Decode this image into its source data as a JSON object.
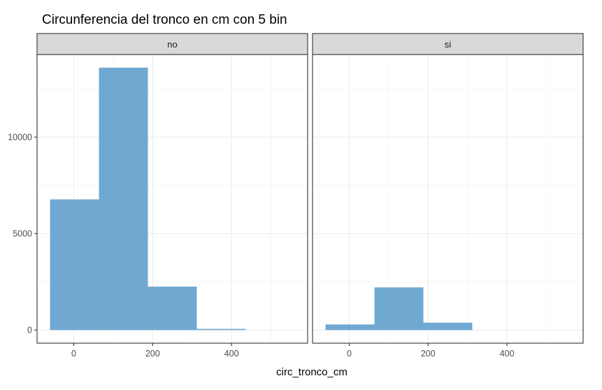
{
  "chart_data": {
    "type": "bar",
    "title": "Circunferencia del tronco en cm con 5 bin",
    "xlabel": "circ_tronco_cm",
    "ylabel": "",
    "bar_color": "#6fa8d1",
    "bin_edges": [
      -60,
      64,
      188,
      312,
      436,
      560
    ],
    "x_ticks": [
      0,
      200,
      400
    ],
    "y_ticks": [
      0,
      5000,
      10000
    ],
    "xlim": [
      -93,
      593
    ],
    "ylim": [
      -680,
      14280
    ],
    "panels": [
      {
        "label": "no",
        "values": [
          6770,
          13600,
          2250,
          60,
          0
        ]
      },
      {
        "label": "si",
        "values": [
          290,
          2210,
          380,
          0,
          0
        ]
      }
    ]
  }
}
